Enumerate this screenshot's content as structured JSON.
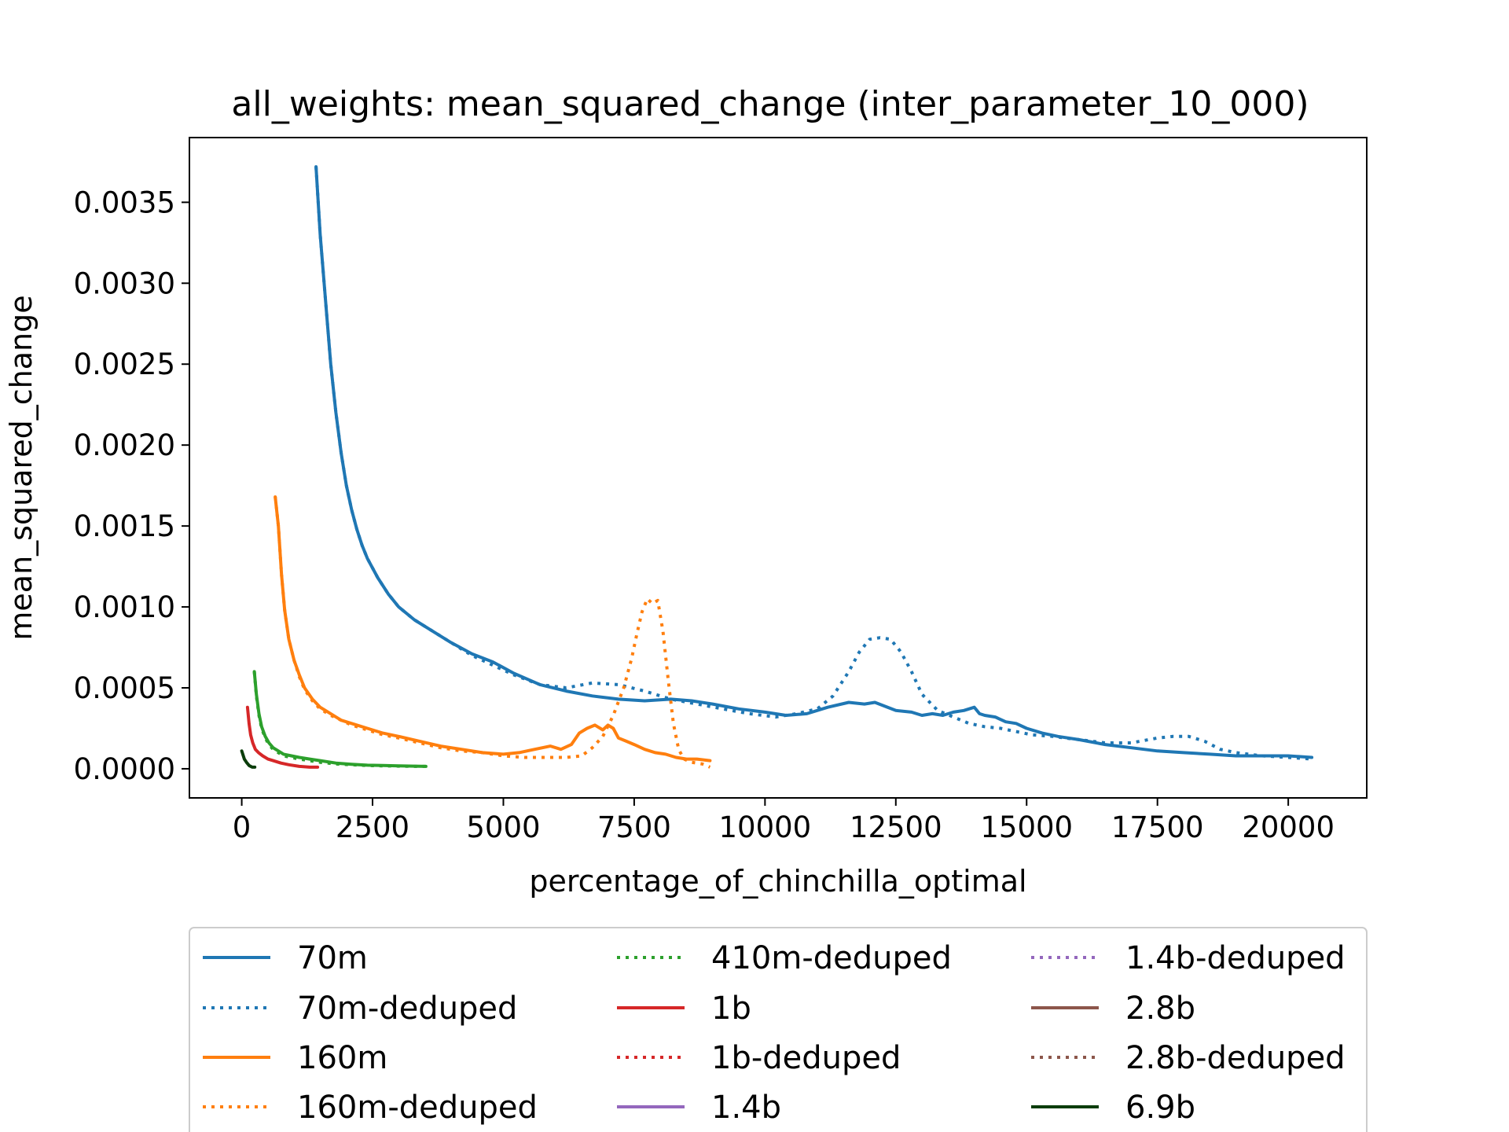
{
  "chart_data": {
    "type": "line",
    "title": "all_weights: mean_squared_change (inter_parameter_10_000)",
    "xlabel": "percentage_of_chinchilla_optimal",
    "ylabel": "mean_squared_change",
    "xlim": [
      -1000,
      21500
    ],
    "ylim": [
      -0.00018,
      0.0039
    ],
    "xticks": [
      0,
      2500,
      5000,
      7500,
      10000,
      12500,
      15000,
      17500,
      20000
    ],
    "xtick_labels": [
      "0",
      "2500",
      "5000",
      "7500",
      "10000",
      "12500",
      "15000",
      "17500",
      "20000"
    ],
    "yticks": [
      0.0,
      0.0005,
      0.001,
      0.0015,
      0.002,
      0.0025,
      0.003,
      0.0035
    ],
    "ytick_labels": [
      "0.0000",
      "0.0005",
      "0.0010",
      "0.0015",
      "0.0020",
      "0.0025",
      "0.0030",
      "0.0035"
    ],
    "grid": false,
    "legend_position": "bottom",
    "series": [
      {
        "name": "70m",
        "color": "#1f77b4",
        "style": "solid",
        "x": [
          1420,
          1500,
          1600,
          1700,
          1800,
          1900,
          2000,
          2100,
          2200,
          2300,
          2400,
          2600,
          2800,
          3000,
          3300,
          3600,
          4000,
          4400,
          4800,
          5200,
          5700,
          6200,
          6700,
          7200,
          7700,
          8200,
          8600,
          9000,
          9500,
          10000,
          10400,
          10800,
          11200,
          11600,
          11900,
          12100,
          12500,
          12800,
          13000,
          13200,
          13400,
          13600,
          13800,
          14000,
          14100,
          14200,
          14400,
          14600,
          14800,
          15000,
          15300,
          15600,
          16000,
          16500,
          17000,
          17500,
          18000,
          18500,
          19000,
          19500,
          20000,
          20450
        ],
        "y": [
          0.00372,
          0.0033,
          0.0029,
          0.0025,
          0.0022,
          0.00195,
          0.00175,
          0.0016,
          0.00148,
          0.00138,
          0.0013,
          0.00118,
          0.00108,
          0.001,
          0.00092,
          0.00086,
          0.00078,
          0.00071,
          0.00066,
          0.00059,
          0.00052,
          0.00048,
          0.00045,
          0.00043,
          0.00042,
          0.00043,
          0.00042,
          0.0004,
          0.00037,
          0.00035,
          0.00033,
          0.00034,
          0.00038,
          0.00041,
          0.0004,
          0.00041,
          0.00036,
          0.00035,
          0.00033,
          0.00034,
          0.00033,
          0.00035,
          0.00036,
          0.00038,
          0.00034,
          0.00033,
          0.00032,
          0.00029,
          0.00028,
          0.00025,
          0.00022,
          0.0002,
          0.00018,
          0.00015,
          0.00013,
          0.00011,
          0.0001,
          9e-05,
          8e-05,
          8e-05,
          8e-05,
          7e-05
        ]
      },
      {
        "name": "70m-deduped",
        "color": "#1f77b4",
        "style": "dotted",
        "x": [
          1420,
          1500,
          1600,
          1700,
          1800,
          1900,
          2000,
          2100,
          2200,
          2300,
          2400,
          2600,
          2800,
          3000,
          3300,
          3600,
          4000,
          4400,
          4800,
          5200,
          5700,
          6200,
          6700,
          7200,
          7700,
          8200,
          8700,
          9200,
          9700,
          10200,
          10600,
          11000,
          11300,
          11600,
          11800,
          12000,
          12200,
          12400,
          12600,
          12800,
          13000,
          13300,
          13600,
          13900,
          14200,
          14500,
          14800,
          15100,
          15500,
          16000,
          16500,
          17000,
          17500,
          17800,
          18100,
          18400,
          18700,
          19000,
          19500,
          20000,
          20450
        ],
        "y": [
          0.00372,
          0.0033,
          0.0029,
          0.0025,
          0.0022,
          0.00195,
          0.00175,
          0.0016,
          0.00148,
          0.00138,
          0.0013,
          0.00118,
          0.00108,
          0.001,
          0.00092,
          0.00086,
          0.00078,
          0.0007,
          0.00064,
          0.00058,
          0.00052,
          0.0005,
          0.00053,
          0.00052,
          0.00048,
          0.00043,
          0.0004,
          0.00037,
          0.00034,
          0.00032,
          0.00034,
          0.00037,
          0.00045,
          0.0006,
          0.00072,
          0.0008,
          0.00081,
          0.0008,
          0.00072,
          0.0006,
          0.00046,
          0.00036,
          0.00032,
          0.00028,
          0.00026,
          0.00025,
          0.00023,
          0.00021,
          0.0002,
          0.00018,
          0.00016,
          0.00016,
          0.00019,
          0.0002,
          0.0002,
          0.00017,
          0.00012,
          0.0001,
          8e-05,
          7e-05,
          6e-05
        ]
      },
      {
        "name": "160m",
        "color": "#ff7f0e",
        "style": "solid",
        "x": [
          640,
          700,
          760,
          820,
          900,
          1000,
          1100,
          1200,
          1350,
          1500,
          1700,
          1900,
          2100,
          2400,
          2700,
          3000,
          3400,
          3800,
          4200,
          4600,
          5000,
          5300,
          5600,
          5900,
          6100,
          6300,
          6450,
          6600,
          6750,
          6900,
          7000,
          7100,
          7200,
          7350,
          7500,
          7700,
          7900,
          8100,
          8300,
          8500,
          8700,
          8950
        ],
        "y": [
          0.00168,
          0.0015,
          0.0012,
          0.00098,
          0.0008,
          0.00067,
          0.00058,
          0.0005,
          0.00043,
          0.00038,
          0.00034,
          0.0003,
          0.00028,
          0.00025,
          0.00022,
          0.0002,
          0.00017,
          0.00014,
          0.00012,
          0.0001,
          9e-05,
          0.0001,
          0.00012,
          0.00014,
          0.00012,
          0.00015,
          0.00022,
          0.00025,
          0.00027,
          0.00024,
          0.00027,
          0.00025,
          0.00019,
          0.00017,
          0.00015,
          0.00012,
          0.0001,
          9e-05,
          7e-05,
          6e-05,
          6e-05,
          5e-05
        ]
      },
      {
        "name": "160m-deduped",
        "color": "#ff7f0e",
        "style": "dotted",
        "x": [
          640,
          700,
          760,
          820,
          900,
          1000,
          1100,
          1200,
          1350,
          1500,
          1700,
          1900,
          2100,
          2400,
          2700,
          3000,
          3400,
          3800,
          4200,
          4600,
          5000,
          5400,
          5800,
          6200,
          6500,
          6700,
          6900,
          7100,
          7300,
          7450,
          7550,
          7650,
          7750,
          7850,
          7950,
          8050,
          8150,
          8250,
          8350,
          8450,
          8600,
          8800,
          8950
        ],
        "y": [
          0.00168,
          0.0015,
          0.0012,
          0.00098,
          0.0008,
          0.00067,
          0.00057,
          0.00049,
          0.00042,
          0.00037,
          0.00033,
          0.0003,
          0.00027,
          0.00024,
          0.00021,
          0.00019,
          0.00016,
          0.00013,
          0.00011,
          0.0001,
          8e-05,
          7e-05,
          7e-05,
          7e-05,
          8e-05,
          0.00013,
          0.0002,
          0.00033,
          0.0005,
          0.00068,
          0.00083,
          0.00097,
          0.00105,
          0.00102,
          0.00104,
          0.00085,
          0.00055,
          0.00028,
          0.00012,
          6e-05,
          4e-05,
          3e-05,
          1e-05
        ]
      },
      {
        "name": "410m-deduped",
        "color": "#2ca02c",
        "style": "dotted",
        "x": [
          240,
          280,
          330,
          380,
          450,
          520,
          600,
          700,
          800,
          950,
          1100,
          1300,
          1500,
          1800,
          2100,
          2400,
          2700,
          3000,
          3300,
          3520
        ],
        "y": [
          0.0006,
          0.00045,
          0.00033,
          0.00025,
          0.00019,
          0.00015,
          0.00012,
          0.0001,
          8e-05,
          7e-05,
          6e-05,
          5e-05,
          4e-05,
          3e-05,
          2.5e-05,
          2e-05,
          1.8e-05,
          1.6e-05,
          1.5e-05,
          1.5e-05
        ]
      },
      {
        "name": "410m",
        "color": "#2ca02c",
        "style": "solid",
        "x": [
          240,
          280,
          330,
          380,
          450,
          520,
          600,
          700,
          800,
          950,
          1100,
          1300,
          1500,
          1800,
          2100,
          2400,
          2700,
          3000,
          3300,
          3520
        ],
        "y": [
          0.0006,
          0.00046,
          0.00034,
          0.00026,
          0.0002,
          0.00016,
          0.00013,
          0.00011,
          9e-05,
          8e-05,
          7e-05,
          6e-05,
          5e-05,
          3.5e-05,
          2.8e-05,
          2.2e-05,
          2e-05,
          1.8e-05,
          1.6e-05,
          1.5e-05
        ]
      },
      {
        "name": "1b",
        "color": "#d62728",
        "style": "solid",
        "x": [
          110,
          140,
          170,
          210,
          260,
          320,
          400,
          500,
          600,
          750,
          900,
          1100,
          1300,
          1450
        ],
        "y": [
          0.00038,
          0.00028,
          0.00021,
          0.00016,
          0.00012,
          0.0001,
          8e-05,
          6e-05,
          5e-05,
          3.5e-05,
          2.5e-05,
          1.5e-05,
          1e-05,
          1e-05
        ]
      },
      {
        "name": "1b-deduped",
        "color": "#d62728",
        "style": "dotted",
        "x": [],
        "y": []
      },
      {
        "name": "1.4b",
        "color": "#9467bd",
        "style": "solid",
        "x": [],
        "y": []
      },
      {
        "name": "1.4b-deduped",
        "color": "#9467bd",
        "style": "dotted",
        "x": [],
        "y": []
      },
      {
        "name": "2.8b",
        "color": "#8c564b",
        "style": "solid",
        "x": [],
        "y": []
      },
      {
        "name": "2.8b-deduped",
        "color": "#8c564b",
        "style": "dotted",
        "x": [],
        "y": []
      },
      {
        "name": "6.9b",
        "color": "#0b3d0b",
        "style": "solid",
        "x": [
          0,
          20,
          50,
          90,
          140,
          200,
          250
        ],
        "y": [
          0.00011,
          9e-05,
          6e-05,
          4e-05,
          2e-05,
          1e-05,
          1e-05
        ]
      }
    ],
    "legend": [
      {
        "name": "70m",
        "color": "#1f77b4",
        "style": "solid"
      },
      {
        "name": "70m-deduped",
        "color": "#1f77b4",
        "style": "dotted"
      },
      {
        "name": "160m",
        "color": "#ff7f0e",
        "style": "solid"
      },
      {
        "name": "160m-deduped",
        "color": "#ff7f0e",
        "style": "dotted"
      },
      {
        "name": "410m-deduped",
        "color": "#2ca02c",
        "style": "dotted"
      },
      {
        "name": "1b",
        "color": "#d62728",
        "style": "solid"
      },
      {
        "name": "1b-deduped",
        "color": "#d62728",
        "style": "dotted"
      },
      {
        "name": "1.4b",
        "color": "#9467bd",
        "style": "solid"
      },
      {
        "name": "1.4b-deduped",
        "color": "#9467bd",
        "style": "dotted"
      },
      {
        "name": "2.8b",
        "color": "#8c564b",
        "style": "solid"
      },
      {
        "name": "2.8b-deduped",
        "color": "#8c564b",
        "style": "dotted"
      },
      {
        "name": "6.9b",
        "color": "#0b3d0b",
        "style": "solid"
      }
    ]
  }
}
